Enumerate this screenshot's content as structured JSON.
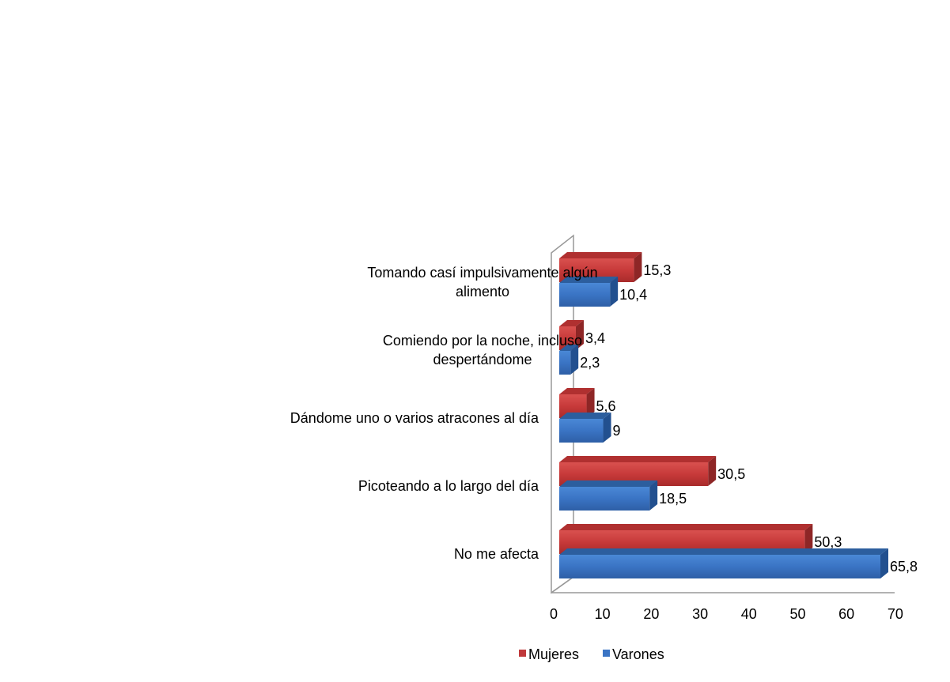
{
  "chart_data": {
    "type": "bar",
    "orientation": "horizontal",
    "style": "3d-clustered",
    "title": "",
    "xlabel": "",
    "ylabel": "",
    "xlim": [
      0,
      70
    ],
    "x_ticks": [
      "0",
      "10",
      "20",
      "30",
      "40",
      "50",
      "60",
      "70"
    ],
    "categories": [
      [
        "Tomando casí impulsivamente algún",
        "alimento"
      ],
      [
        "Comiendo por la noche, incluso",
        "despertándome"
      ],
      [
        "Dándome uno o varios atracones al día"
      ],
      [
        "Picoteando a lo largo del día"
      ],
      [
        "No me afecta"
      ]
    ],
    "series": [
      {
        "name": "Mujeres",
        "color": "#C0393B",
        "values": [
          15.3,
          3.4,
          5.6,
          30.5,
          50.3
        ],
        "labels": [
          "15,3",
          "3,4",
          "5,6",
          "30,5",
          "50,3"
        ]
      },
      {
        "name": "Varones",
        "color": "#3A74C4",
        "values": [
          10.4,
          2.3,
          9,
          18.5,
          65.8
        ],
        "labels": [
          "10,4",
          "2,3",
          "9",
          "18,5",
          "65,8"
        ]
      }
    ],
    "legend": "bottom",
    "grid": false
  }
}
